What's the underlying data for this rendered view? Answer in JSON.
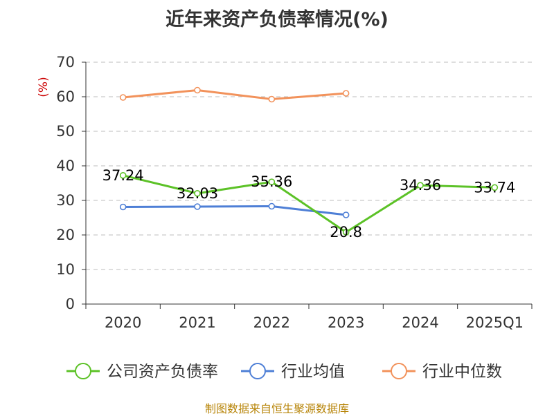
{
  "title": "近年来资产负债率情况(%)",
  "source": "制图数据来自恒生聚源数据库",
  "chart_data": {
    "type": "line",
    "title": "近年来资产负债率情况(%)",
    "xlabel": "",
    "ylabel": "(%)",
    "categories": [
      "2020",
      "2021",
      "2022",
      "2023",
      "2024",
      "2025Q1"
    ],
    "ylim": [
      0,
      70
    ],
    "yticks": [
      "0",
      "10",
      "20",
      "30",
      "40",
      "50",
      "60",
      "70"
    ],
    "grid": true,
    "legend_position": "bottom",
    "series": [
      {
        "name": "公司资产负债率",
        "color": "#5cc227",
        "values": [
          37.24,
          32.03,
          35.36,
          20.8,
          34.36,
          33.74
        ],
        "labels": [
          "37.24",
          "32.03",
          "35.36",
          "20.8",
          "34.36",
          "33.74"
        ]
      },
      {
        "name": "行业均值",
        "color": "#4e7fd6",
        "values": [
          28.1,
          28.2,
          28.3,
          25.8,
          null,
          null
        ]
      },
      {
        "name": "行业中位数",
        "color": "#f2925b",
        "values": [
          59.8,
          61.9,
          59.3,
          61.0,
          null,
          null
        ]
      }
    ]
  }
}
